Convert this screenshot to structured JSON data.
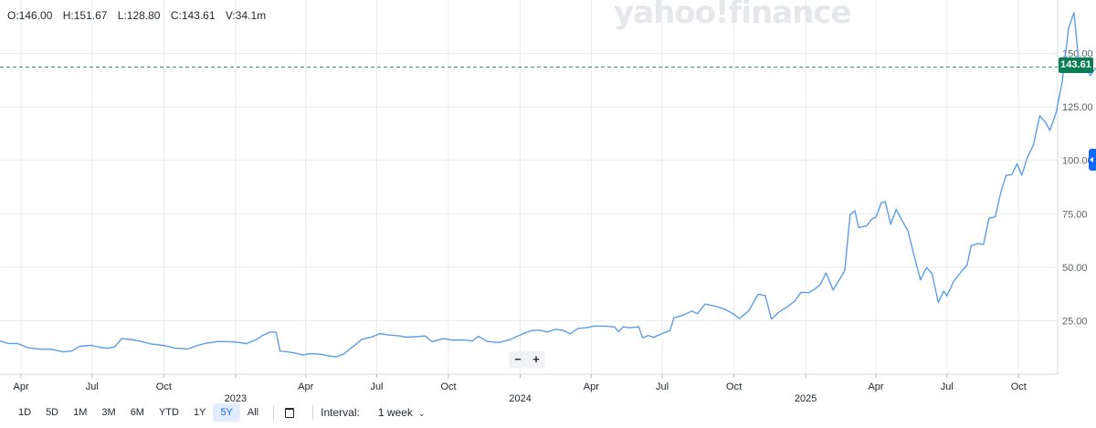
{
  "header": {
    "open": "O:146.00",
    "high": "H:151.67",
    "low": "L:128.80",
    "close": "C:143.61",
    "volume": "V:34.1m"
  },
  "watermark": "yahoo!finance",
  "last_price_label": "143.61",
  "zoom": {
    "minus": "−",
    "plus": "+"
  },
  "toolbar": {
    "ranges": [
      "1D",
      "5D",
      "1M",
      "3M",
      "6M",
      "YTD",
      "1Y",
      "5Y",
      "All"
    ],
    "active_range": "5Y",
    "interval_label": "Interval:",
    "interval_value": "1 week"
  },
  "colors": {
    "line": "#5b9ee6",
    "last_price": "#0b7d55",
    "accent": "#0f69ff",
    "grid": "#e8e9ec"
  },
  "chart_data": {
    "type": "line",
    "x_range": [
      "2022-03-05",
      "2025-11-20"
    ],
    "ylim": [
      0,
      175
    ],
    "y_ticks": [
      25,
      50,
      75,
      100,
      125,
      150
    ],
    "y_tick_labels": [
      "25.00",
      "50.00",
      "75.00",
      "100.00",
      "125.00",
      "150.00"
    ],
    "last_price": 143.61,
    "grid": true,
    "month_ticks": [
      {
        "date": "2022-04-01",
        "label": "Apr"
      },
      {
        "date": "2022-07-01",
        "label": "Jul"
      },
      {
        "date": "2022-10-01",
        "label": "Oct"
      },
      {
        "date": "2023-04-01",
        "label": "Apr"
      },
      {
        "date": "2023-07-01",
        "label": "Jul"
      },
      {
        "date": "2023-10-01",
        "label": "Oct"
      },
      {
        "date": "2024-04-01",
        "label": "Apr"
      },
      {
        "date": "2024-07-01",
        "label": "Jul"
      },
      {
        "date": "2024-10-01",
        "label": "Oct"
      },
      {
        "date": "2025-04-01",
        "label": "Apr"
      },
      {
        "date": "2025-07-01",
        "label": "Jul"
      },
      {
        "date": "2025-10-01",
        "label": "Oct"
      }
    ],
    "year_ticks": [
      {
        "date": "2023-01-01",
        "label": "2023"
      },
      {
        "date": "2024-01-01",
        "label": "2024"
      },
      {
        "date": "2025-01-01",
        "label": "2025"
      }
    ],
    "series": [
      {
        "points": [
          [
            "2022-03-05",
            15.5
          ],
          [
            "2022-03-15",
            14.4
          ],
          [
            "2022-03-28",
            14.3
          ],
          [
            "2022-04-10",
            12.3
          ],
          [
            "2022-04-25",
            11.7
          ],
          [
            "2022-05-10",
            11.6
          ],
          [
            "2022-05-25",
            10.4
          ],
          [
            "2022-06-05",
            10.8
          ],
          [
            "2022-06-15",
            13.0
          ],
          [
            "2022-06-30",
            13.5
          ],
          [
            "2022-07-10",
            12.6
          ],
          [
            "2022-07-20",
            12.1
          ],
          [
            "2022-07-30",
            12.7
          ],
          [
            "2022-08-08",
            16.6
          ],
          [
            "2022-08-20",
            16.2
          ],
          [
            "2022-09-01",
            15.4
          ],
          [
            "2022-09-15",
            14.1
          ],
          [
            "2022-10-01",
            13.4
          ],
          [
            "2022-10-15",
            12.2
          ],
          [
            "2022-11-01",
            11.8
          ],
          [
            "2022-11-15",
            13.6
          ],
          [
            "2022-11-25",
            14.5
          ],
          [
            "2022-12-10",
            15.3
          ],
          [
            "2022-12-25",
            15.2
          ],
          [
            "2023-01-05",
            14.8
          ],
          [
            "2023-01-15",
            14.3
          ],
          [
            "2023-01-27",
            16.0
          ],
          [
            "2023-02-05",
            18.2
          ],
          [
            "2023-02-15",
            19.7
          ],
          [
            "2023-02-22",
            19.6
          ],
          [
            "2023-02-27",
            10.8
          ],
          [
            "2023-03-08",
            10.5
          ],
          [
            "2023-03-18",
            9.9
          ],
          [
            "2023-03-28",
            9.0
          ],
          [
            "2023-04-07",
            9.6
          ],
          [
            "2023-04-20",
            9.3
          ],
          [
            "2023-05-01",
            8.5
          ],
          [
            "2023-05-10",
            8.1
          ],
          [
            "2023-05-20",
            9.5
          ],
          [
            "2023-06-02",
            13.3
          ],
          [
            "2023-06-12",
            16.3
          ],
          [
            "2023-06-25",
            17.4
          ],
          [
            "2023-07-05",
            19.0
          ],
          [
            "2023-07-15",
            18.4
          ],
          [
            "2023-07-30",
            17.9
          ],
          [
            "2023-08-08",
            17.3
          ],
          [
            "2023-08-20",
            17.5
          ],
          [
            "2023-09-01",
            17.9
          ],
          [
            "2023-09-10",
            15.2
          ],
          [
            "2023-09-25",
            16.7
          ],
          [
            "2023-10-05",
            15.9
          ],
          [
            "2023-10-20",
            16.0
          ],
          [
            "2023-11-01",
            15.5
          ],
          [
            "2023-11-08",
            17.7
          ],
          [
            "2023-11-20",
            15.3
          ],
          [
            "2023-12-05",
            14.8
          ],
          [
            "2023-12-20",
            16.3
          ],
          [
            "2024-01-05",
            19.0
          ],
          [
            "2024-01-15",
            20.3
          ],
          [
            "2024-01-25",
            20.6
          ],
          [
            "2024-02-05",
            19.7
          ],
          [
            "2024-02-15",
            21.0
          ],
          [
            "2024-02-25",
            20.5
          ],
          [
            "2024-03-05",
            18.9
          ],
          [
            "2024-03-15",
            21.4
          ],
          [
            "2024-03-25",
            21.7
          ],
          [
            "2024-04-05",
            22.5
          ],
          [
            "2024-04-20",
            22.4
          ],
          [
            "2024-05-01",
            22.1
          ],
          [
            "2024-05-06",
            19.8
          ],
          [
            "2024-05-12",
            22.1
          ],
          [
            "2024-05-20",
            21.7
          ],
          [
            "2024-06-01",
            22.1
          ],
          [
            "2024-06-06",
            17.0
          ],
          [
            "2024-06-13",
            18.1
          ],
          [
            "2024-06-20",
            17.2
          ],
          [
            "2024-07-01",
            19.0
          ],
          [
            "2024-07-11",
            20.4
          ],
          [
            "2024-07-16",
            26.3
          ],
          [
            "2024-07-28",
            27.6
          ],
          [
            "2024-08-08",
            29.5
          ],
          [
            "2024-08-15",
            28.3
          ],
          [
            "2024-08-25",
            32.8
          ],
          [
            "2024-09-10",
            31.5
          ],
          [
            "2024-09-20",
            30.2
          ],
          [
            "2024-09-30",
            28.3
          ],
          [
            "2024-10-08",
            26.0
          ],
          [
            "2024-10-20",
            29.6
          ],
          [
            "2024-11-01",
            37.4
          ],
          [
            "2024-11-10",
            36.8
          ],
          [
            "2024-11-18",
            25.8
          ],
          [
            "2024-11-28",
            29.1
          ],
          [
            "2024-12-08",
            31.4
          ],
          [
            "2024-12-18",
            34.2
          ],
          [
            "2024-12-26",
            38.3
          ],
          [
            "2025-01-05",
            38.1
          ],
          [
            "2025-01-13",
            39.9
          ],
          [
            "2025-01-20",
            42.0
          ],
          [
            "2025-01-27",
            47.4
          ],
          [
            "2025-02-05",
            39.4
          ],
          [
            "2025-02-15",
            45.3
          ],
          [
            "2025-02-20",
            48.5
          ],
          [
            "2025-02-27",
            74.6
          ],
          [
            "2025-03-05",
            76.4
          ],
          [
            "2025-03-10",
            68.5
          ],
          [
            "2025-03-20",
            69.3
          ],
          [
            "2025-03-27",
            72.7
          ],
          [
            "2025-04-01",
            73.4
          ],
          [
            "2025-04-08",
            80.2
          ],
          [
            "2025-04-13",
            80.6
          ],
          [
            "2025-04-20",
            70.1
          ],
          [
            "2025-04-27",
            77.1
          ],
          [
            "2025-05-05",
            71.5
          ],
          [
            "2025-05-12",
            67.2
          ],
          [
            "2025-05-20",
            55.4
          ],
          [
            "2025-05-28",
            44.1
          ],
          [
            "2025-06-05",
            49.9
          ],
          [
            "2025-06-12",
            47.0
          ],
          [
            "2025-06-20",
            33.6
          ],
          [
            "2025-06-27",
            38.9
          ],
          [
            "2025-07-01",
            36.6
          ],
          [
            "2025-07-10",
            43.6
          ],
          [
            "2025-07-20",
            48.2
          ],
          [
            "2025-07-27",
            51.0
          ],
          [
            "2025-08-01",
            60.1
          ],
          [
            "2025-08-10",
            61.1
          ],
          [
            "2025-08-17",
            60.7
          ],
          [
            "2025-08-24",
            72.9
          ],
          [
            "2025-09-01",
            73.6
          ],
          [
            "2025-09-08",
            84.9
          ],
          [
            "2025-09-15",
            93.0
          ],
          [
            "2025-09-22",
            93.3
          ],
          [
            "2025-09-29",
            98.4
          ],
          [
            "2025-10-05",
            93.1
          ],
          [
            "2025-10-12",
            101.2
          ],
          [
            "2025-10-20",
            107.2
          ],
          [
            "2025-10-28",
            120.9
          ],
          [
            "2025-11-05",
            117.4
          ],
          [
            "2025-11-10",
            114.0
          ],
          [
            "2025-11-18",
            122.2
          ],
          [
            "2025-11-26",
            137.1
          ],
          [
            "2025-12-04",
            161.9
          ],
          [
            "2025-12-11",
            169.1
          ],
          [
            "2025-12-18",
            142.8
          ],
          [
            "2025-12-25",
            143.6
          ],
          [
            "2026-01-01",
            139.6
          ],
          [
            "2026-01-08",
            143.3
          ]
        ]
      }
    ]
  }
}
